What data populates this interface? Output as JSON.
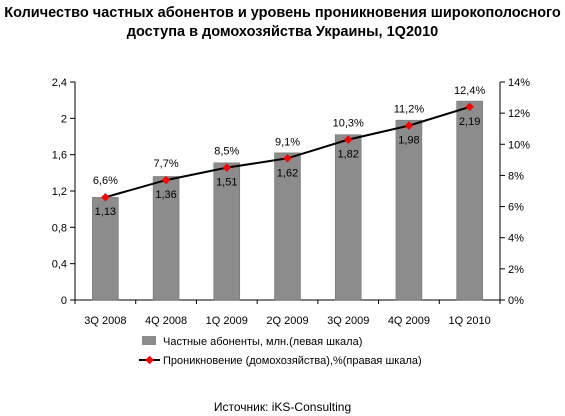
{
  "title_line1": "Количество частных абонентов и уровень проникновения широкополосного",
  "title_line2": "доступа в домохозяйства Украины, 1Q2010",
  "source": "Источник: iKS-Consulting",
  "chart_data": {
    "type": "bar",
    "categories": [
      "3Q 2008",
      "4Q 2008",
      "1Q 2009",
      "2Q 2009",
      "3Q 2009",
      "4Q 2009",
      "1Q 2010"
    ],
    "series": [
      {
        "name": "Частные абоненты, млн.(левая шкала)",
        "type": "bar",
        "axis": "left",
        "values": [
          1.13,
          1.36,
          1.51,
          1.62,
          1.82,
          1.98,
          2.19
        ],
        "labels": [
          "1,13",
          "1,36",
          "1,51",
          "1,62",
          "1,82",
          "1,98",
          "2,19"
        ],
        "color": "#8c8c8c"
      },
      {
        "name": "Проникновение (домохозяйства),%(правая шкала)",
        "type": "line",
        "axis": "right",
        "values": [
          6.6,
          7.7,
          8.5,
          9.1,
          10.3,
          11.2,
          12.4
        ],
        "labels": [
          "6,6%",
          "7,7%",
          "8,5%",
          "9,1%",
          "10,3%",
          "11,2%",
          "12,4%"
        ],
        "color": "#000000",
        "marker_color": "#ff0000"
      }
    ],
    "left_axis": {
      "ylim": [
        0,
        2.4
      ],
      "ticks": [
        "0",
        "0,4",
        "0,8",
        "1,2",
        "1,6",
        "2",
        "2,4"
      ]
    },
    "right_axis": {
      "ylim": [
        0,
        14
      ],
      "ticks": [
        "0%",
        "2%",
        "4%",
        "6%",
        "8%",
        "10%",
        "12%",
        "14%"
      ]
    },
    "grid": false,
    "legend_position": "bottom"
  }
}
